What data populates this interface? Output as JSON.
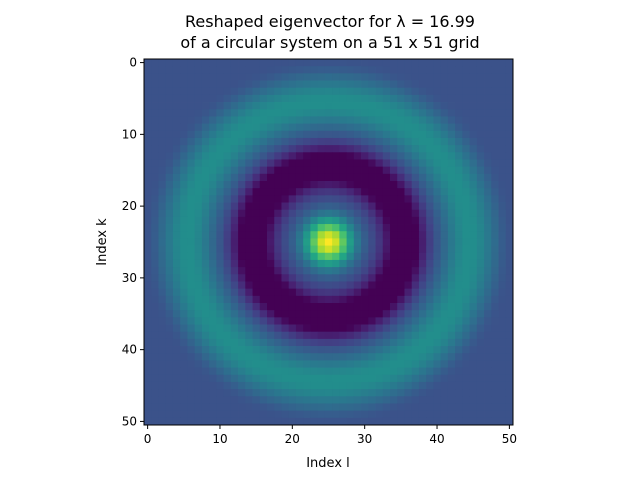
{
  "chart_data": {
    "type": "heatmap",
    "title_lines": [
      "Reshaped eigenvector for λ = 16.99",
      "of a circular system on a 51 x 51 grid"
    ],
    "xlabel": "Index l",
    "ylabel": "Index k",
    "grid_size": [
      51,
      51
    ],
    "x_ticks": [
      0,
      10,
      20,
      30,
      40,
      50
    ],
    "y_ticks": [
      0,
      10,
      20,
      30,
      40,
      50
    ],
    "xlim": [
      -0.5,
      50.5
    ],
    "ylim": [
      50.5,
      -0.5
    ],
    "y_inverted": true,
    "colormap": "viridis",
    "grid": false,
    "pattern": {
      "center": [
        25,
        25
      ],
      "peak_value": 1.0,
      "background_value": 0.25,
      "dark_ring_radius": 10.5,
      "light_ring_radius": 19.5,
      "outer_fade_radius": 23
    }
  }
}
